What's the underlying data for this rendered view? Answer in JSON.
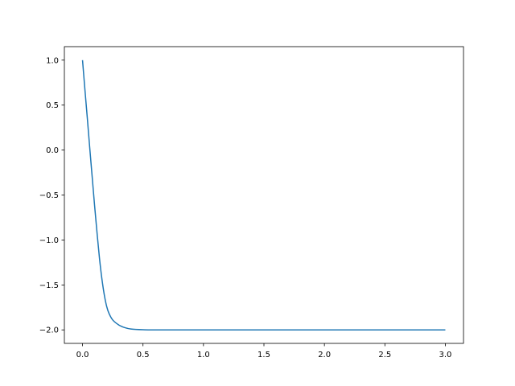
{
  "chart_data": {
    "type": "line",
    "title": "",
    "xlabel": "",
    "ylabel": "",
    "xlim": [
      -0.15,
      3.15
    ],
    "ylim": [
      -2.15,
      1.15
    ],
    "grid": false,
    "x_ticks": [
      0.0,
      0.5,
      1.0,
      1.5,
      2.0,
      2.5,
      3.0
    ],
    "x_tick_labels": [
      "0.0",
      "0.5",
      "1.0",
      "1.5",
      "2.0",
      "2.5",
      "3.0"
    ],
    "y_ticks": [
      1.0,
      0.5,
      0.0,
      -0.5,
      -1.0,
      -1.5,
      -2.0
    ],
    "y_tick_labels": [
      "1.0",
      "0.5",
      "0.0",
      "−0.5",
      "−1.0",
      "−1.5",
      "−2.0"
    ],
    "series": [
      {
        "color": "#1f77b4",
        "x": [
          0,
          0.02,
          0.04,
          0.06,
          0.08,
          0.1,
          0.12,
          0.14,
          0.16,
          0.18,
          0.2,
          0.22,
          0.25,
          0.3,
          0.35,
          0.4,
          0.5,
          0.6,
          1.0,
          1.5,
          2.0,
          2.5,
          3.0
        ],
        "y": [
          1.0,
          0.67,
          0.35,
          0.02,
          -0.3,
          -0.62,
          -0.92,
          -1.2,
          -1.43,
          -1.61,
          -1.74,
          -1.82,
          -1.89,
          -1.945,
          -1.975,
          -1.99,
          -1.998,
          -2.0,
          -2.0,
          -2.0,
          -2.0,
          -2.0,
          -2.0
        ]
      }
    ]
  }
}
